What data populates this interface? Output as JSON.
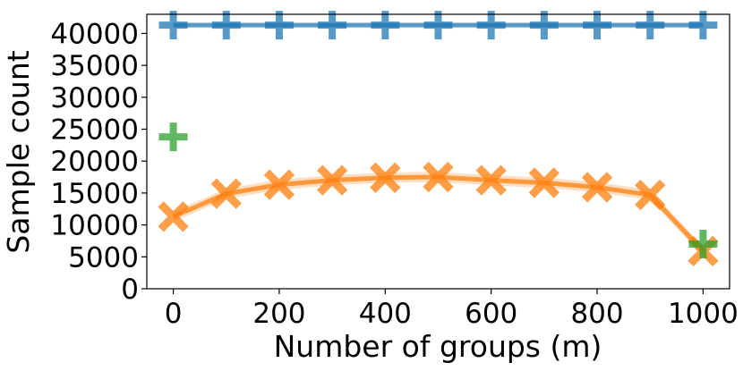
{
  "chart_data": {
    "type": "line",
    "xlabel": "Number of groups (m)",
    "ylabel": "Sample count",
    "xlim": [
      -50,
      1050
    ],
    "ylim": [
      0,
      43000
    ],
    "xticks": [
      0,
      200,
      400,
      600,
      800,
      1000
    ],
    "yticks": [
      0,
      5000,
      10000,
      15000,
      20000,
      25000,
      30000,
      35000,
      40000,
      45000
    ],
    "ytick_labels": [
      "0",
      "5000",
      "10000",
      "15000",
      "20000",
      "25000",
      "30000",
      "35000",
      "40000"
    ],
    "xtick_labels": [
      "0",
      "200",
      "400",
      "600",
      "800",
      "1000"
    ],
    "grid": false,
    "legend": "none",
    "series": [
      {
        "color": "#1f77b4",
        "marker": "plus",
        "x": [
          0,
          100,
          200,
          300,
          400,
          500,
          600,
          700,
          800,
          900,
          1000
        ],
        "y": [
          41300,
          41300,
          41300,
          41300,
          41300,
          41300,
          41300,
          41300,
          41300,
          41300,
          41300
        ],
        "band": 0
      },
      {
        "color": "#ff7f0e",
        "marker": "x",
        "x": [
          0,
          100,
          200,
          300,
          400,
          500,
          600,
          700,
          800,
          900,
          1000
        ],
        "y": [
          11300,
          14900,
          16300,
          17000,
          17400,
          17500,
          17000,
          16600,
          15900,
          14700,
          5900
        ],
        "band": 800
      },
      {
        "color": "#2ca02c",
        "marker": "plus",
        "x": [
          0,
          1000
        ],
        "y": [
          23800,
          7000
        ],
        "band": 0,
        "no_line": true
      }
    ]
  }
}
